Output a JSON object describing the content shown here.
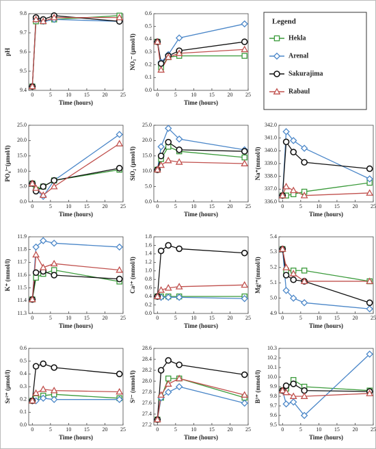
{
  "legend_title": "Legend",
  "chart_data": [
    {
      "type": "line",
      "ylabel": "pH",
      "xlabel": "Time (hours)",
      "x": [
        0,
        1,
        3,
        6,
        24
      ],
      "xlim": [
        -1,
        25
      ],
      "xticks": [
        0,
        5,
        10,
        15,
        20,
        25
      ],
      "ylim": [
        9.4,
        9.8
      ],
      "yticks": [
        9.4,
        9.5,
        9.6,
        9.7,
        9.8
      ],
      "series": [
        {
          "name": "Hekla",
          "color": "#3a9a3a",
          "marker": "square",
          "values": [
            9.42,
            9.76,
            9.76,
            9.77,
            9.79
          ]
        },
        {
          "name": "Arenal",
          "color": "#4a86c8",
          "marker": "diamond",
          "values": [
            9.42,
            9.77,
            9.76,
            9.77,
            9.76
          ]
        },
        {
          "name": "Sakurajima",
          "color": "#111111",
          "marker": "circle",
          "values": [
            9.42,
            9.78,
            9.77,
            9.79,
            9.76
          ]
        },
        {
          "name": "Rabaul",
          "color": "#c0504d",
          "marker": "triangle",
          "values": [
            9.42,
            9.77,
            9.76,
            9.78,
            9.78
          ]
        }
      ]
    },
    {
      "type": "line",
      "ylabel": "NO₃⁻ (μmol/l)",
      "xlabel": "Time (hours)",
      "x": [
        0,
        1,
        3,
        6,
        24
      ],
      "xlim": [
        -1,
        25
      ],
      "xticks": [
        0,
        5,
        10,
        15,
        20,
        25
      ],
      "ylim": [
        0,
        0.6
      ],
      "yticks": [
        {
          "value": 0,
          "label": "0.0"
        },
        0.1,
        0.2,
        0.3,
        0.4,
        0.5,
        0.6
      ],
      "series": [
        {
          "name": "Hekla",
          "color": "#3a9a3a",
          "marker": "square",
          "values": [
            0.38,
            0.18,
            0.26,
            0.27,
            0.27
          ]
        },
        {
          "name": "Arenal",
          "color": "#4a86c8",
          "marker": "diamond",
          "values": [
            0.38,
            0.22,
            0.28,
            0.41,
            0.52
          ]
        },
        {
          "name": "Sakurajima",
          "color": "#111111",
          "marker": "circle",
          "values": [
            0.38,
            0.21,
            0.27,
            0.31,
            0.38
          ]
        },
        {
          "name": "Rabaul",
          "color": "#c0504d",
          "marker": "triangle",
          "values": [
            0.38,
            0.16,
            0.26,
            0.29,
            0.32
          ]
        }
      ]
    },
    {
      "type": "line",
      "ylabel": "PO₄³⁻(μmol/l)",
      "xlabel": "Time (hours)",
      "x": [
        0,
        1,
        3,
        6,
        24
      ],
      "xlim": [
        -1,
        25
      ],
      "xticks": [
        0,
        5,
        10,
        15,
        20,
        25
      ],
      "ylim": [
        0,
        25
      ],
      "yticks": [
        {
          "value": 0,
          "label": "0.0"
        },
        {
          "value": 5,
          "label": "5.0"
        },
        {
          "value": 10,
          "label": "10.0"
        },
        {
          "value": 15,
          "label": "15.0"
        },
        {
          "value": 20,
          "label": "20.0"
        },
        {
          "value": 25,
          "label": "25.0"
        }
      ],
      "series": [
        {
          "name": "Hekla",
          "color": "#3a9a3a",
          "marker": "square",
          "values": [
            6,
            4,
            5,
            7,
            10.5
          ]
        },
        {
          "name": "Arenal",
          "color": "#4a86c8",
          "marker": "diamond",
          "values": [
            6,
            4,
            1.8,
            7,
            22
          ]
        },
        {
          "name": "Sakurajima",
          "color": "#111111",
          "marker": "circle",
          "values": [
            6,
            3.5,
            5,
            7,
            11
          ]
        },
        {
          "name": "Rabaul",
          "color": "#c0504d",
          "marker": "triangle",
          "values": [
            6,
            4.5,
            2.2,
            5,
            19
          ]
        }
      ]
    },
    {
      "type": "line",
      "ylabel": "SiO₂ (μmol/l)",
      "xlabel": "Time (hours)",
      "x": [
        0,
        1,
        3,
        6,
        24
      ],
      "xlim": [
        -1,
        25
      ],
      "xticks": [
        0,
        5,
        10,
        15,
        20,
        25
      ],
      "ylim": [
        0,
        25
      ],
      "yticks": [
        {
          "value": 0,
          "label": "0.0"
        },
        {
          "value": 5,
          "label": "5.0"
        },
        {
          "value": 10,
          "label": "10.0"
        },
        {
          "value": 15,
          "label": "15.0"
        },
        {
          "value": 20,
          "label": "20.0"
        },
        {
          "value": 25,
          "label": "25.0"
        }
      ],
      "series": [
        {
          "name": "Hekla",
          "color": "#3a9a3a",
          "marker": "square",
          "values": [
            10.5,
            14,
            18,
            16.5,
            14.5
          ]
        },
        {
          "name": "Arenal",
          "color": "#4a86c8",
          "marker": "diamond",
          "values": [
            10.5,
            18,
            24,
            20.5,
            17
          ]
        },
        {
          "name": "Sakurajima",
          "color": "#111111",
          "marker": "circle",
          "values": [
            10.5,
            15,
            19.5,
            17,
            16.5
          ]
        },
        {
          "name": "Rabaul",
          "color": "#c0504d",
          "marker": "triangle",
          "values": [
            10.5,
            12,
            13.5,
            13,
            12.5
          ]
        }
      ]
    },
    {
      "type": "line",
      "ylabel": "Na⁺(mmol/l)",
      "xlabel": "Time (hours)",
      "x": [
        0,
        1,
        3,
        6,
        24
      ],
      "xlim": [
        -1,
        25
      ],
      "xticks": [
        0,
        5,
        10,
        15,
        20,
        25
      ],
      "ylim": [
        336,
        342
      ],
      "yticks": [
        {
          "value": 336,
          "label": "336.0"
        },
        {
          "value": 337,
          "label": "337.0"
        },
        {
          "value": 338,
          "label": "338.0"
        },
        {
          "value": 339,
          "label": "339.0"
        },
        {
          "value": 340,
          "label": "340.0"
        },
        {
          "value": 341,
          "label": "341.0"
        },
        {
          "value": 342,
          "label": "342.0"
        }
      ],
      "series": [
        {
          "name": "Hekla",
          "color": "#3a9a3a",
          "marker": "square",
          "values": [
            336.5,
            336.5,
            336.6,
            336.8,
            337.5
          ]
        },
        {
          "name": "Arenal",
          "color": "#4a86c8",
          "marker": "diamond",
          "values": [
            336.5,
            341.5,
            340.8,
            340.2,
            337.8
          ]
        },
        {
          "name": "Sakurajima",
          "color": "#111111",
          "marker": "circle",
          "values": [
            336.5,
            340.7,
            339.9,
            339.1,
            338.6
          ]
        },
        {
          "name": "Rabaul",
          "color": "#c0504d",
          "marker": "triangle",
          "values": [
            336.5,
            337.2,
            336.9,
            336.5,
            336.7
          ]
        }
      ]
    },
    {
      "type": "line",
      "ylabel": "K⁺ (mmol/l)",
      "xlabel": "Time (hours)",
      "x": [
        0,
        1,
        3,
        6,
        24
      ],
      "xlim": [
        -1,
        25
      ],
      "xticks": [
        0,
        5,
        10,
        15,
        20,
        25
      ],
      "ylim": [
        11.3,
        11.9
      ],
      "yticks": [
        11.3,
        11.4,
        11.5,
        11.6,
        11.7,
        11.8,
        11.9
      ],
      "series": [
        {
          "name": "Hekla",
          "color": "#3a9a3a",
          "marker": "square",
          "values": [
            11.41,
            11.58,
            11.61,
            11.64,
            11.55
          ]
        },
        {
          "name": "Arenal",
          "color": "#4a86c8",
          "marker": "diamond",
          "values": [
            11.41,
            11.82,
            11.87,
            11.85,
            11.82
          ]
        },
        {
          "name": "Sakurajima",
          "color": "#111111",
          "marker": "circle",
          "values": [
            11.41,
            11.62,
            11.63,
            11.6,
            11.57
          ]
        },
        {
          "name": "Rabaul",
          "color": "#c0504d",
          "marker": "triangle",
          "values": [
            11.41,
            11.76,
            11.66,
            11.69,
            11.64
          ]
        }
      ]
    },
    {
      "type": "line",
      "ylabel": "Ca²⁺ (mmol/l)",
      "xlabel": "Time (hours)",
      "x": [
        0,
        1,
        3,
        6,
        24
      ],
      "xlim": [
        -1,
        25
      ],
      "xticks": [
        0,
        5,
        10,
        15,
        20,
        25
      ],
      "ylim": [
        0,
        1.8
      ],
      "yticks": [
        {
          "value": 0,
          "label": "0.0"
        },
        0.2,
        0.4,
        0.6,
        0.8,
        {
          "value": 1,
          "label": "1.0"
        },
        1.2,
        1.4,
        1.6,
        1.8
      ],
      "series": [
        {
          "name": "Hekla",
          "color": "#3a9a3a",
          "marker": "square",
          "values": [
            0.4,
            0.4,
            0.4,
            0.4,
            0.4
          ]
        },
        {
          "name": "Arenal",
          "color": "#4a86c8",
          "marker": "diamond",
          "values": [
            0.4,
            0.38,
            0.38,
            0.38,
            0.35
          ]
        },
        {
          "name": "Sakurajima",
          "color": "#111111",
          "marker": "circle",
          "values": [
            0.4,
            1.47,
            1.6,
            1.52,
            1.42
          ]
        },
        {
          "name": "Rabaul",
          "color": "#c0504d",
          "marker": "triangle",
          "values": [
            0.4,
            0.55,
            0.6,
            0.63,
            0.67
          ]
        }
      ]
    },
    {
      "type": "line",
      "ylabel": "Mg²⁺(mmol/l)",
      "xlabel": "Time (hours)",
      "x": [
        0,
        1,
        3,
        6,
        24
      ],
      "xlim": [
        -1,
        25
      ],
      "xticks": [
        0,
        5,
        10,
        15,
        20,
        25
      ],
      "ylim": [
        4.9,
        5.4
      ],
      "yticks": [
        4.9,
        {
          "value": 5,
          "label": "5.0"
        },
        5.1,
        5.2,
        5.3,
        5.4
      ],
      "series": [
        {
          "name": "Hekla",
          "color": "#3a9a3a",
          "marker": "square",
          "values": [
            5.32,
            5.18,
            5.18,
            5.18,
            5.11
          ]
        },
        {
          "name": "Arenal",
          "color": "#4a86c8",
          "marker": "diamond",
          "values": [
            5.32,
            5.05,
            5.0,
            4.97,
            4.93
          ]
        },
        {
          "name": "Sakurajima",
          "color": "#111111",
          "marker": "circle",
          "values": [
            5.32,
            5.15,
            5.12,
            5.11,
            4.97
          ]
        },
        {
          "name": "Rabaul",
          "color": "#c0504d",
          "marker": "triangle",
          "values": [
            5.32,
            5.2,
            5.16,
            5.11,
            5.11
          ]
        }
      ]
    },
    {
      "type": "line",
      "ylabel": "Sr²⁺ (μmol/l)",
      "xlabel": "Time (hours)",
      "x": [
        0,
        1,
        3,
        6,
        24
      ],
      "xlim": [
        -1,
        25
      ],
      "xticks": [
        0,
        5,
        10,
        15,
        20,
        25
      ],
      "ylim": [
        0,
        0.6
      ],
      "yticks": [
        {
          "value": 0,
          "label": "0.0"
        },
        0.1,
        0.2,
        0.3,
        0.4,
        0.5,
        0.6
      ],
      "series": [
        {
          "name": "Hekla",
          "color": "#3a9a3a",
          "marker": "square",
          "values": [
            0.19,
            0.21,
            0.23,
            0.24,
            0.21
          ]
        },
        {
          "name": "Arenal",
          "color": "#4a86c8",
          "marker": "diamond",
          "values": [
            0.19,
            0.19,
            0.21,
            0.2,
            0.2
          ]
        },
        {
          "name": "Sakurajima",
          "color": "#111111",
          "marker": "circle",
          "values": [
            0.19,
            0.46,
            0.48,
            0.45,
            0.4
          ]
        },
        {
          "name": "Rabaul",
          "color": "#c0504d",
          "marker": "triangle",
          "values": [
            0.19,
            0.25,
            0.28,
            0.27,
            0.26
          ]
        }
      ]
    },
    {
      "type": "line",
      "ylabel": "S²⁻ (mmol/l)",
      "xlabel": "Time (hours)",
      "x": [
        0,
        1,
        3,
        6,
        24
      ],
      "xlim": [
        -1,
        25
      ],
      "xticks": [
        0,
        5,
        10,
        15,
        20,
        25
      ],
      "ylim": [
        27.2,
        28.6
      ],
      "yticks": [
        27.2,
        27.4,
        27.6,
        27.8,
        {
          "value": 28,
          "label": "28.0"
        },
        28.2,
        28.4,
        28.6
      ],
      "series": [
        {
          "name": "Hekla",
          "color": "#3a9a3a",
          "marker": "square",
          "values": [
            27.3,
            27.7,
            28.05,
            28.05,
            27.7
          ]
        },
        {
          "name": "Arenal",
          "color": "#4a86c8",
          "marker": "diamond",
          "values": [
            27.3,
            27.7,
            27.8,
            27.9,
            27.6
          ]
        },
        {
          "name": "Sakurajima",
          "color": "#111111",
          "marker": "circle",
          "values": [
            27.3,
            28.2,
            28.38,
            28.3,
            28.12
          ]
        },
        {
          "name": "Rabaul",
          "color": "#c0504d",
          "marker": "triangle",
          "values": [
            27.3,
            27.75,
            27.95,
            28.05,
            27.75
          ]
        }
      ]
    },
    {
      "type": "line",
      "ylabel": "B³⁺ (mmol/l)",
      "xlabel": "Time (hours)",
      "x": [
        0,
        1,
        3,
        6,
        24
      ],
      "xlim": [
        -1,
        25
      ],
      "xticks": [
        0,
        5,
        10,
        15,
        20,
        25
      ],
      "ylim": [
        9.5,
        10.3
      ],
      "yticks": [
        9.5,
        9.6,
        9.7,
        9.8,
        9.9,
        {
          "value": 10,
          "label": "10.0"
        },
        10.1,
        10.2,
        10.3
      ],
      "series": [
        {
          "name": "Hekla",
          "color": "#3a9a3a",
          "marker": "square",
          "values": [
            9.86,
            9.88,
            9.97,
            9.9,
            9.86
          ]
        },
        {
          "name": "Arenal",
          "color": "#4a86c8",
          "marker": "diamond",
          "values": [
            9.86,
            9.72,
            9.74,
            9.6,
            10.24
          ]
        },
        {
          "name": "Sakurajima",
          "color": "#111111",
          "marker": "circle",
          "values": [
            9.86,
            9.91,
            9.93,
            9.86,
            9.85
          ]
        },
        {
          "name": "Rabaul",
          "color": "#c0504d",
          "marker": "triangle",
          "values": [
            9.86,
            9.84,
            9.8,
            9.8,
            9.83
          ]
        }
      ]
    }
  ]
}
